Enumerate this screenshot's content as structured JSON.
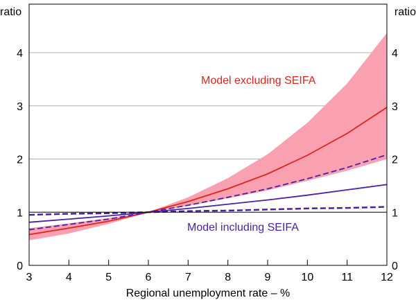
{
  "chart_data": {
    "type": "line",
    "xlabel": "Regional unemployment rate – %",
    "ylabel_left": "ratio",
    "ylabel_right": "ratio",
    "xlim": [
      3,
      12
    ],
    "ylim": [
      0,
      4.5
    ],
    "x_ticks": [
      "3",
      "4",
      "5",
      "6",
      "7",
      "8",
      "9",
      "10",
      "11",
      "12"
    ],
    "y_ticks": [
      "0",
      "1",
      "2",
      "3",
      "4"
    ],
    "grid": true,
    "x": [
      3,
      4,
      5,
      6,
      7,
      8,
      9,
      10,
      11,
      12
    ],
    "band": {
      "lower": [
        0.47,
        0.6,
        0.78,
        1,
        1.12,
        1.26,
        1.41,
        1.59,
        1.78,
        2.0
      ],
      "upper": [
        0.7,
        0.79,
        0.89,
        1,
        1.28,
        1.64,
        2.09,
        2.68,
        3.42,
        4.37
      ],
      "color": "#f9a1b0"
    },
    "series": [
      {
        "values": [
          0.58,
          0.7,
          0.83,
          1,
          1.2,
          1.44,
          1.72,
          2.07,
          2.48,
          2.97
        ],
        "color": "#e2231a",
        "style": "solid"
      },
      {
        "values": [
          0.81,
          0.87,
          0.93,
          1,
          1.07,
          1.15,
          1.23,
          1.32,
          1.42,
          1.52
        ],
        "color": "#4b1fa8",
        "style": "solid"
      },
      {
        "values": [
          0.67,
          0.77,
          0.87,
          1,
          1.13,
          1.28,
          1.44,
          1.63,
          1.84,
          2.08
        ],
        "color": "#4b1fa8",
        "style": "dashed"
      },
      {
        "values": [
          0.95,
          0.97,
          0.98,
          1,
          1.02,
          1.03,
          1.05,
          1.07,
          1.08,
          1.1
        ],
        "color": "#4b1fa8",
        "style": "dashed"
      }
    ],
    "annotations": {
      "excluding": {
        "text": "Model excluding SEIFA",
        "color": "#e2231a"
      },
      "including": {
        "text": "Model including SEIFA",
        "color": "#4b1fa8"
      }
    }
  }
}
